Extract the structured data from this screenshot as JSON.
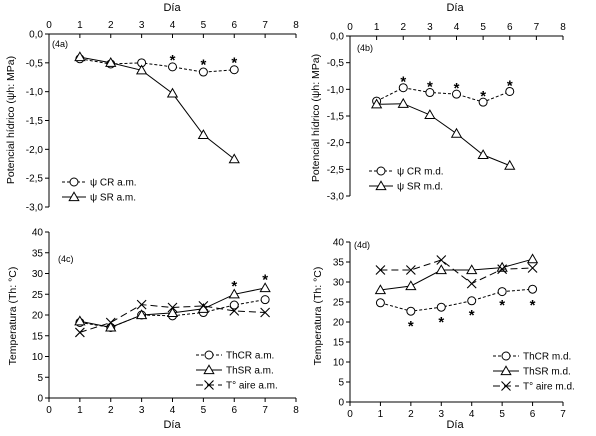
{
  "figure": {
    "background": "#ffffff",
    "line_color": "#000000"
  },
  "chart_data": [
    {
      "id": "4a",
      "type": "line",
      "panel_label": "(4a)",
      "xlabel": "Día",
      "ylabel": "Potencial hídrico (ψh: MPa)",
      "xlim": [
        0,
        8
      ],
      "ylim": [
        -3.0,
        0.0
      ],
      "x_ticks": [
        0,
        1,
        2,
        3,
        4,
        5,
        6,
        7,
        8
      ],
      "y_ticks": [
        0.0,
        -0.5,
        -1.0,
        -1.5,
        -2.0,
        -2.5,
        -3.0
      ],
      "y_tick_labels": [
        "0,0",
        "-0,5",
        "-1,0",
        "-1,5",
        "-2,0",
        "-2,5",
        "-3,0"
      ],
      "x_axis_position": "top",
      "grid": false,
      "legend_position": "bottom-left",
      "series": [
        {
          "name": "ψ CR a.m.",
          "marker": "circle",
          "dash": "dashed",
          "x": [
            1,
            2,
            3,
            4,
            5,
            6
          ],
          "y": [
            -0.43,
            -0.52,
            -0.5,
            -0.57,
            -0.66,
            -0.62
          ]
        },
        {
          "name": "ψ SR a.m.",
          "marker": "triangle",
          "dash": "solid",
          "x": [
            1,
            2,
            3,
            4,
            5,
            6
          ],
          "y": [
            -0.4,
            -0.5,
            -0.63,
            -1.03,
            -1.75,
            -2.17
          ]
        }
      ],
      "asterisks": [
        {
          "x": 4,
          "y": -0.42
        },
        {
          "x": 5,
          "y": -0.49
        },
        {
          "x": 6,
          "y": -0.46
        }
      ]
    },
    {
      "id": "4b",
      "type": "line",
      "panel_label": "(4b)",
      "xlabel": "Día",
      "ylabel": "Potencial hídrico (ψh: MPa)",
      "xlim": [
        0,
        8
      ],
      "ylim": [
        -3.0,
        0.0
      ],
      "x_ticks": [
        0,
        1,
        2,
        3,
        4,
        5,
        6,
        7,
        8
      ],
      "y_ticks": [
        0.0,
        -0.5,
        -1.0,
        -1.5,
        -2.0,
        -2.5,
        -3.0
      ],
      "y_tick_labels": [
        "0,0",
        "-0,5",
        "-1,0",
        "-1,5",
        "-2,0",
        "-2,5",
        "-3,0"
      ],
      "x_axis_position": "top",
      "grid": false,
      "legend_position": "bottom-left",
      "series": [
        {
          "name": "ψ CR m.d.",
          "marker": "circle",
          "dash": "dashed",
          "x": [
            1,
            2,
            3,
            4,
            5,
            6
          ],
          "y": [
            -1.22,
            -0.97,
            -1.06,
            -1.09,
            -1.24,
            -1.04
          ]
        },
        {
          "name": "ψ SR m.d.",
          "marker": "triangle",
          "dash": "solid",
          "x": [
            1,
            2,
            3,
            4,
            5,
            6
          ],
          "y": [
            -1.28,
            -1.27,
            -1.48,
            -1.83,
            -2.23,
            -2.43
          ]
        }
      ],
      "asterisks": [
        {
          "x": 2,
          "y": -0.82
        },
        {
          "x": 3,
          "y": -0.91
        },
        {
          "x": 4,
          "y": -0.94
        },
        {
          "x": 5,
          "y": -1.09
        },
        {
          "x": 6,
          "y": -0.89
        }
      ]
    },
    {
      "id": "4c",
      "type": "line",
      "panel_label": "(4c)",
      "xlabel": "Día",
      "ylabel": "Temperatura (Th: °C)",
      "xlim": [
        0,
        8
      ],
      "ylim": [
        0,
        40
      ],
      "x_ticks": [
        0,
        1,
        2,
        3,
        4,
        5,
        6,
        7,
        8
      ],
      "y_ticks": [
        0,
        5,
        10,
        15,
        20,
        25,
        30,
        35,
        40
      ],
      "y_tick_labels": [
        "0",
        "5",
        "10",
        "15",
        "20",
        "25",
        "30",
        "35",
        "40"
      ],
      "x_axis_position": "bottom",
      "grid": false,
      "legend_position": "bottom-right",
      "series": [
        {
          "name": "ThCR a.m.",
          "marker": "circle",
          "dash": "dashed",
          "x": [
            1,
            2,
            3,
            4,
            5,
            6,
            7
          ],
          "y": [
            18.2,
            17.0,
            20.0,
            19.8,
            20.6,
            22.4,
            23.7
          ]
        },
        {
          "name": "ThSR a.m.",
          "marker": "triangle",
          "dash": "solid",
          "x": [
            1,
            2,
            3,
            4,
            5,
            6,
            7
          ],
          "y": [
            18.5,
            17.0,
            20.0,
            20.5,
            21.5,
            25.0,
            26.5
          ]
        },
        {
          "name": "T° aire a.m.",
          "marker": "cross",
          "dash": "longdash",
          "x": [
            1,
            2,
            3,
            4,
            5,
            6,
            7
          ],
          "y": [
            15.8,
            18.2,
            22.5,
            21.8,
            22.2,
            21.0,
            20.6
          ]
        }
      ],
      "asterisks": [
        {
          "x": 6,
          "y": 27.5
        },
        {
          "x": 7,
          "y": 29.0
        }
      ]
    },
    {
      "id": "4d",
      "type": "line",
      "panel_label": "(4d)",
      "xlabel": "Día",
      "ylabel": "Temperatura (Th: °C)",
      "xlim": [
        0,
        7
      ],
      "ylim": [
        0,
        40
      ],
      "x_ticks": [
        0,
        1,
        2,
        3,
        4,
        5,
        6,
        7
      ],
      "y_ticks": [
        0,
        5,
        10,
        15,
        20,
        25,
        30,
        35,
        40
      ],
      "y_tick_labels": [
        "0",
        "5",
        "10",
        "15",
        "20",
        "25",
        "30",
        "35",
        "40"
      ],
      "x_axis_position": "bottom",
      "grid": false,
      "legend_position": "bottom-right",
      "series": [
        {
          "name": "ThCR m.d.",
          "marker": "circle",
          "dash": "dashed",
          "x": [
            1,
            2,
            3,
            4,
            5,
            6
          ],
          "y": [
            24.8,
            22.7,
            23.7,
            25.3,
            27.6,
            28.2
          ]
        },
        {
          "name": "ThSR m.d.",
          "marker": "triangle",
          "dash": "solid",
          "x": [
            1,
            2,
            3,
            4,
            5,
            6
          ],
          "y": [
            28.0,
            29.0,
            33.0,
            33.0,
            33.6,
            35.7
          ]
        },
        {
          "name": "T° aire m.d.",
          "marker": "cross",
          "dash": "longdash",
          "x": [
            1,
            2,
            3,
            4,
            5,
            6
          ],
          "y": [
            33.0,
            33.0,
            35.5,
            29.6,
            33.2,
            33.5
          ]
        }
      ],
      "asterisks": [
        {
          "x": 2,
          "y": 19.5
        },
        {
          "x": 3,
          "y": 20.5
        },
        {
          "x": 4,
          "y": 22.3
        },
        {
          "x": 5,
          "y": 24.8
        },
        {
          "x": 6,
          "y": 24.8
        }
      ]
    }
  ]
}
